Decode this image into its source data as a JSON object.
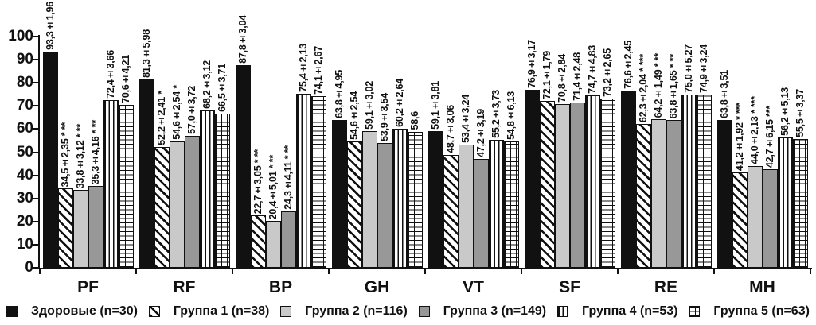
{
  "colors": {
    "ink": "#111111",
    "light_gray_fill": "#c9c9c9",
    "mid_gray_fill": "#989898",
    "background": "#ffffff"
  },
  "chart_data": {
    "type": "bar",
    "title": "",
    "xlabel": "",
    "ylabel": "",
    "ylim": [
      0,
      100
    ],
    "ytick_step": 10,
    "grid": false,
    "legend_position": "bottom",
    "categories": [
      "PF",
      "RF",
      "BP",
      "GH",
      "VT",
      "SF",
      "RE",
      "MH"
    ],
    "series": [
      {
        "name": "Здоровые (n=30)",
        "pattern": "solid-black",
        "values": [
          93.3,
          81.3,
          87.8,
          63.8,
          59.1,
          76.9,
          76.6,
          63.8
        ],
        "labels": [
          "93,3±1,96",
          "81,3±5,98",
          "87,8±3,04",
          "63,8±4,95",
          "59,1±3,81",
          "76,9±3,17",
          "76,6±2,45",
          "63,8±3,51"
        ]
      },
      {
        "name": "Группа 1 (n=38)",
        "pattern": "diagonal-hatch",
        "values": [
          34.5,
          52.2,
          22.7,
          54.6,
          48.7,
          72.1,
          62.3,
          41.2
        ],
        "labels": [
          "34,5±2,35 * **",
          "52,2±2,41 *",
          "22,7±3,05 * **",
          "54,6±2,54",
          "48,7±3,06",
          "72,1±1,79",
          "62,3±2,04 * ***",
          "41,2±1,92 * ***"
        ]
      },
      {
        "name": "Группа 2 (n=116)",
        "pattern": "light-gray",
        "values": [
          33.8,
          54.6,
          20.4,
          59.1,
          53.4,
          70.8,
          64.2,
          44.0
        ],
        "labels": [
          "33,8±3,12 * **",
          "54,6±2,54 *",
          "20,4±5,01 * **",
          "59,1±3,02",
          "53,4±3,24",
          "70,8±2,84",
          "64,2±1,49 * **",
          "44,0±2,13 * ***"
        ]
      },
      {
        "name": "Группа 3 (n=149)",
        "pattern": "mid-gray",
        "values": [
          35.3,
          57.0,
          24.3,
          53.9,
          47.2,
          71.4,
          63.8,
          42.7
        ],
        "labels": [
          "35,3±4,16 * **",
          "57,0±3,72",
          "24,3±4,11 * **",
          "53,9±3,54",
          "47,2±3,19",
          "71,4±2,48",
          "63,8±1,65 * **",
          "42,7±6,15 ***"
        ]
      },
      {
        "name": "Группа 4 (n=53)",
        "pattern": "vertical-lines",
        "values": [
          72.4,
          68.2,
          75.4,
          60.2,
          55.2,
          74.7,
          75.0,
          56.2
        ],
        "labels": [
          "72,4±3,66",
          "68,2±3,12",
          "75,4±2,13",
          "60,2±2,64",
          "55,2±3,73",
          "74,7±4,83",
          "75,0±5,27",
          "56,2±5,13"
        ]
      },
      {
        "name": "Группа 5 (n=63)",
        "pattern": "brick",
        "values": [
          70.6,
          66.5,
          74.1,
          58.6,
          54.8,
          73.2,
          74.9,
          55.5
        ],
        "labels": [
          "70,6±4,21",
          "66,5±3,71",
          "74,1±2,67",
          "58,6",
          "54,8±6,13",
          "73,2±2,65",
          "74,9±3,24",
          "55,5±3,37"
        ]
      }
    ]
  }
}
